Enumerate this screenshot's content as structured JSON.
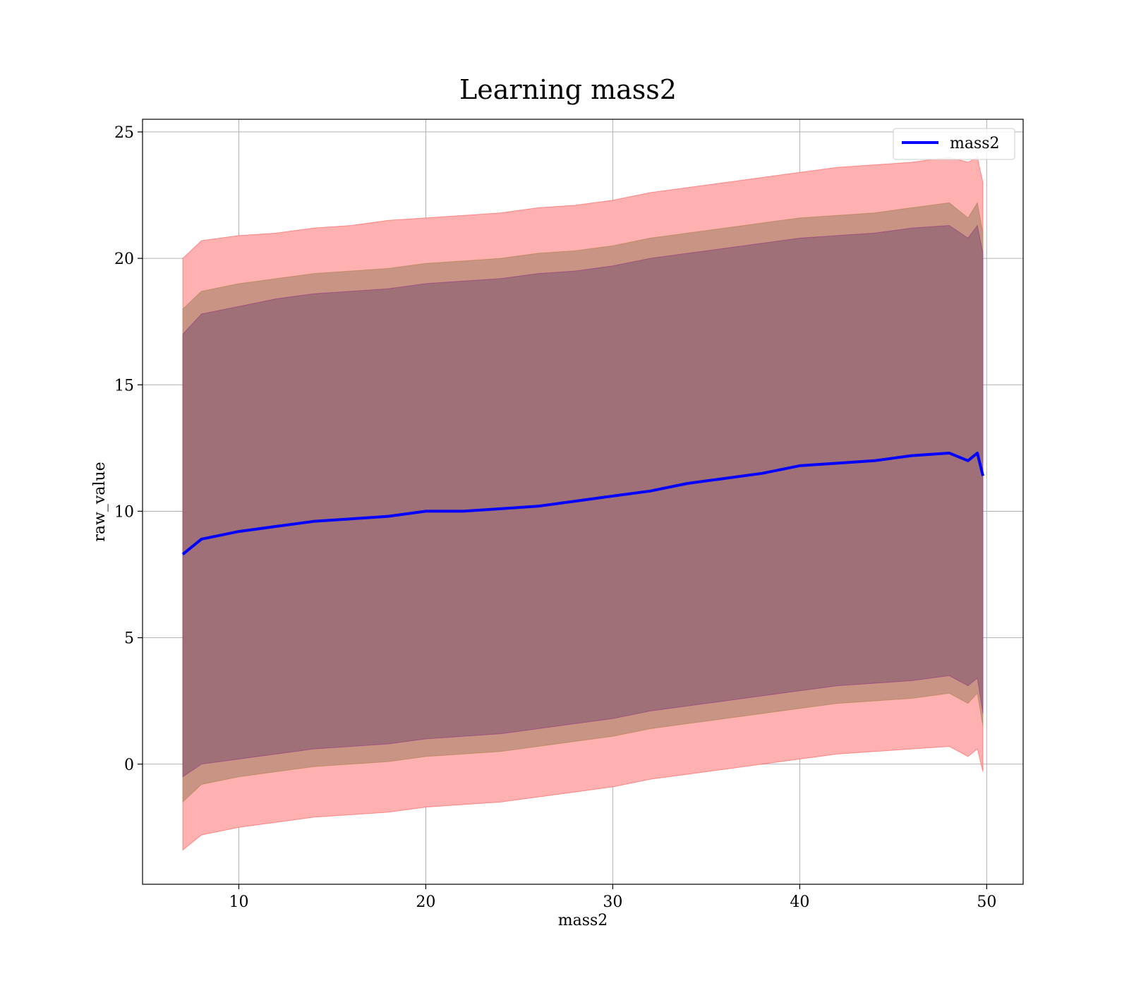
{
  "chart_data": {
    "type": "area",
    "title": "Learning mass2",
    "xlabel": "mass2",
    "ylabel": "raw_value",
    "xlim": [
      4.85,
      51.95
    ],
    "ylim": [
      -4.75,
      25.5
    ],
    "xticks": [
      10,
      20,
      30,
      40,
      50
    ],
    "yticks": [
      0,
      5,
      10,
      15,
      20,
      25
    ],
    "grid": true,
    "legend": {
      "placement": "top-right",
      "entries": [
        "mass2"
      ]
    },
    "colors": {
      "mean_line": "#0000ff",
      "band_outer": "#ff0000",
      "band_middle": "#8b6914",
      "band_inner": "#800080",
      "band_composite_outer": "#ffb0b0",
      "band_composite_middle": "#c89585",
      "band_composite_inner": "#a07079"
    },
    "x": [
      7,
      8,
      10,
      12,
      14,
      16,
      18,
      20,
      22,
      24,
      26,
      28,
      30,
      32,
      34,
      36,
      38,
      40,
      42,
      44,
      46,
      48,
      49,
      49.5,
      49.8
    ],
    "series": [
      {
        "name": "mass2",
        "role": "mean",
        "values": [
          8.3,
          8.9,
          9.2,
          9.4,
          9.6,
          9.7,
          9.8,
          10.0,
          10.0,
          10.1,
          10.2,
          10.4,
          10.6,
          10.8,
          11.1,
          11.3,
          11.5,
          11.8,
          11.9,
          12.0,
          12.2,
          12.3,
          12.0,
          12.3,
          11.4
        ]
      },
      {
        "role": "band-outer",
        "upper": [
          20.0,
          20.7,
          20.9,
          21.0,
          21.2,
          21.3,
          21.5,
          21.6,
          21.7,
          21.8,
          22.0,
          22.1,
          22.3,
          22.6,
          22.8,
          23.0,
          23.2,
          23.4,
          23.6,
          23.7,
          23.8,
          24.0,
          23.8,
          24.0,
          23.0
        ],
        "lower": [
          -3.4,
          -2.8,
          -2.5,
          -2.3,
          -2.1,
          -2.0,
          -1.9,
          -1.7,
          -1.6,
          -1.5,
          -1.3,
          -1.1,
          -0.9,
          -0.6,
          -0.4,
          -0.2,
          0.0,
          0.2,
          0.4,
          0.5,
          0.6,
          0.7,
          0.3,
          0.6,
          -0.3
        ]
      },
      {
        "role": "band-middle",
        "upper": [
          18.0,
          18.7,
          19.0,
          19.2,
          19.4,
          19.5,
          19.6,
          19.8,
          19.9,
          20.0,
          20.2,
          20.3,
          20.5,
          20.8,
          21.0,
          21.2,
          21.4,
          21.6,
          21.7,
          21.8,
          22.0,
          22.2,
          21.6,
          22.2,
          21.0
        ],
        "lower": [
          -1.5,
          -0.8,
          -0.5,
          -0.3,
          -0.1,
          0.0,
          0.1,
          0.3,
          0.4,
          0.5,
          0.7,
          0.9,
          1.1,
          1.4,
          1.6,
          1.8,
          2.0,
          2.2,
          2.4,
          2.5,
          2.6,
          2.8,
          2.4,
          2.8,
          1.5
        ]
      },
      {
        "role": "band-inner",
        "upper": [
          17.0,
          17.8,
          18.1,
          18.4,
          18.6,
          18.7,
          18.8,
          19.0,
          19.1,
          19.2,
          19.4,
          19.5,
          19.7,
          20.0,
          20.2,
          20.4,
          20.6,
          20.8,
          20.9,
          21.0,
          21.2,
          21.3,
          20.8,
          21.3,
          20.2
        ],
        "lower": [
          -0.5,
          0.0,
          0.2,
          0.4,
          0.6,
          0.7,
          0.8,
          1.0,
          1.1,
          1.2,
          1.4,
          1.6,
          1.8,
          2.1,
          2.3,
          2.5,
          2.7,
          2.9,
          3.1,
          3.2,
          3.3,
          3.5,
          3.1,
          3.4,
          2.0
        ]
      }
    ]
  }
}
